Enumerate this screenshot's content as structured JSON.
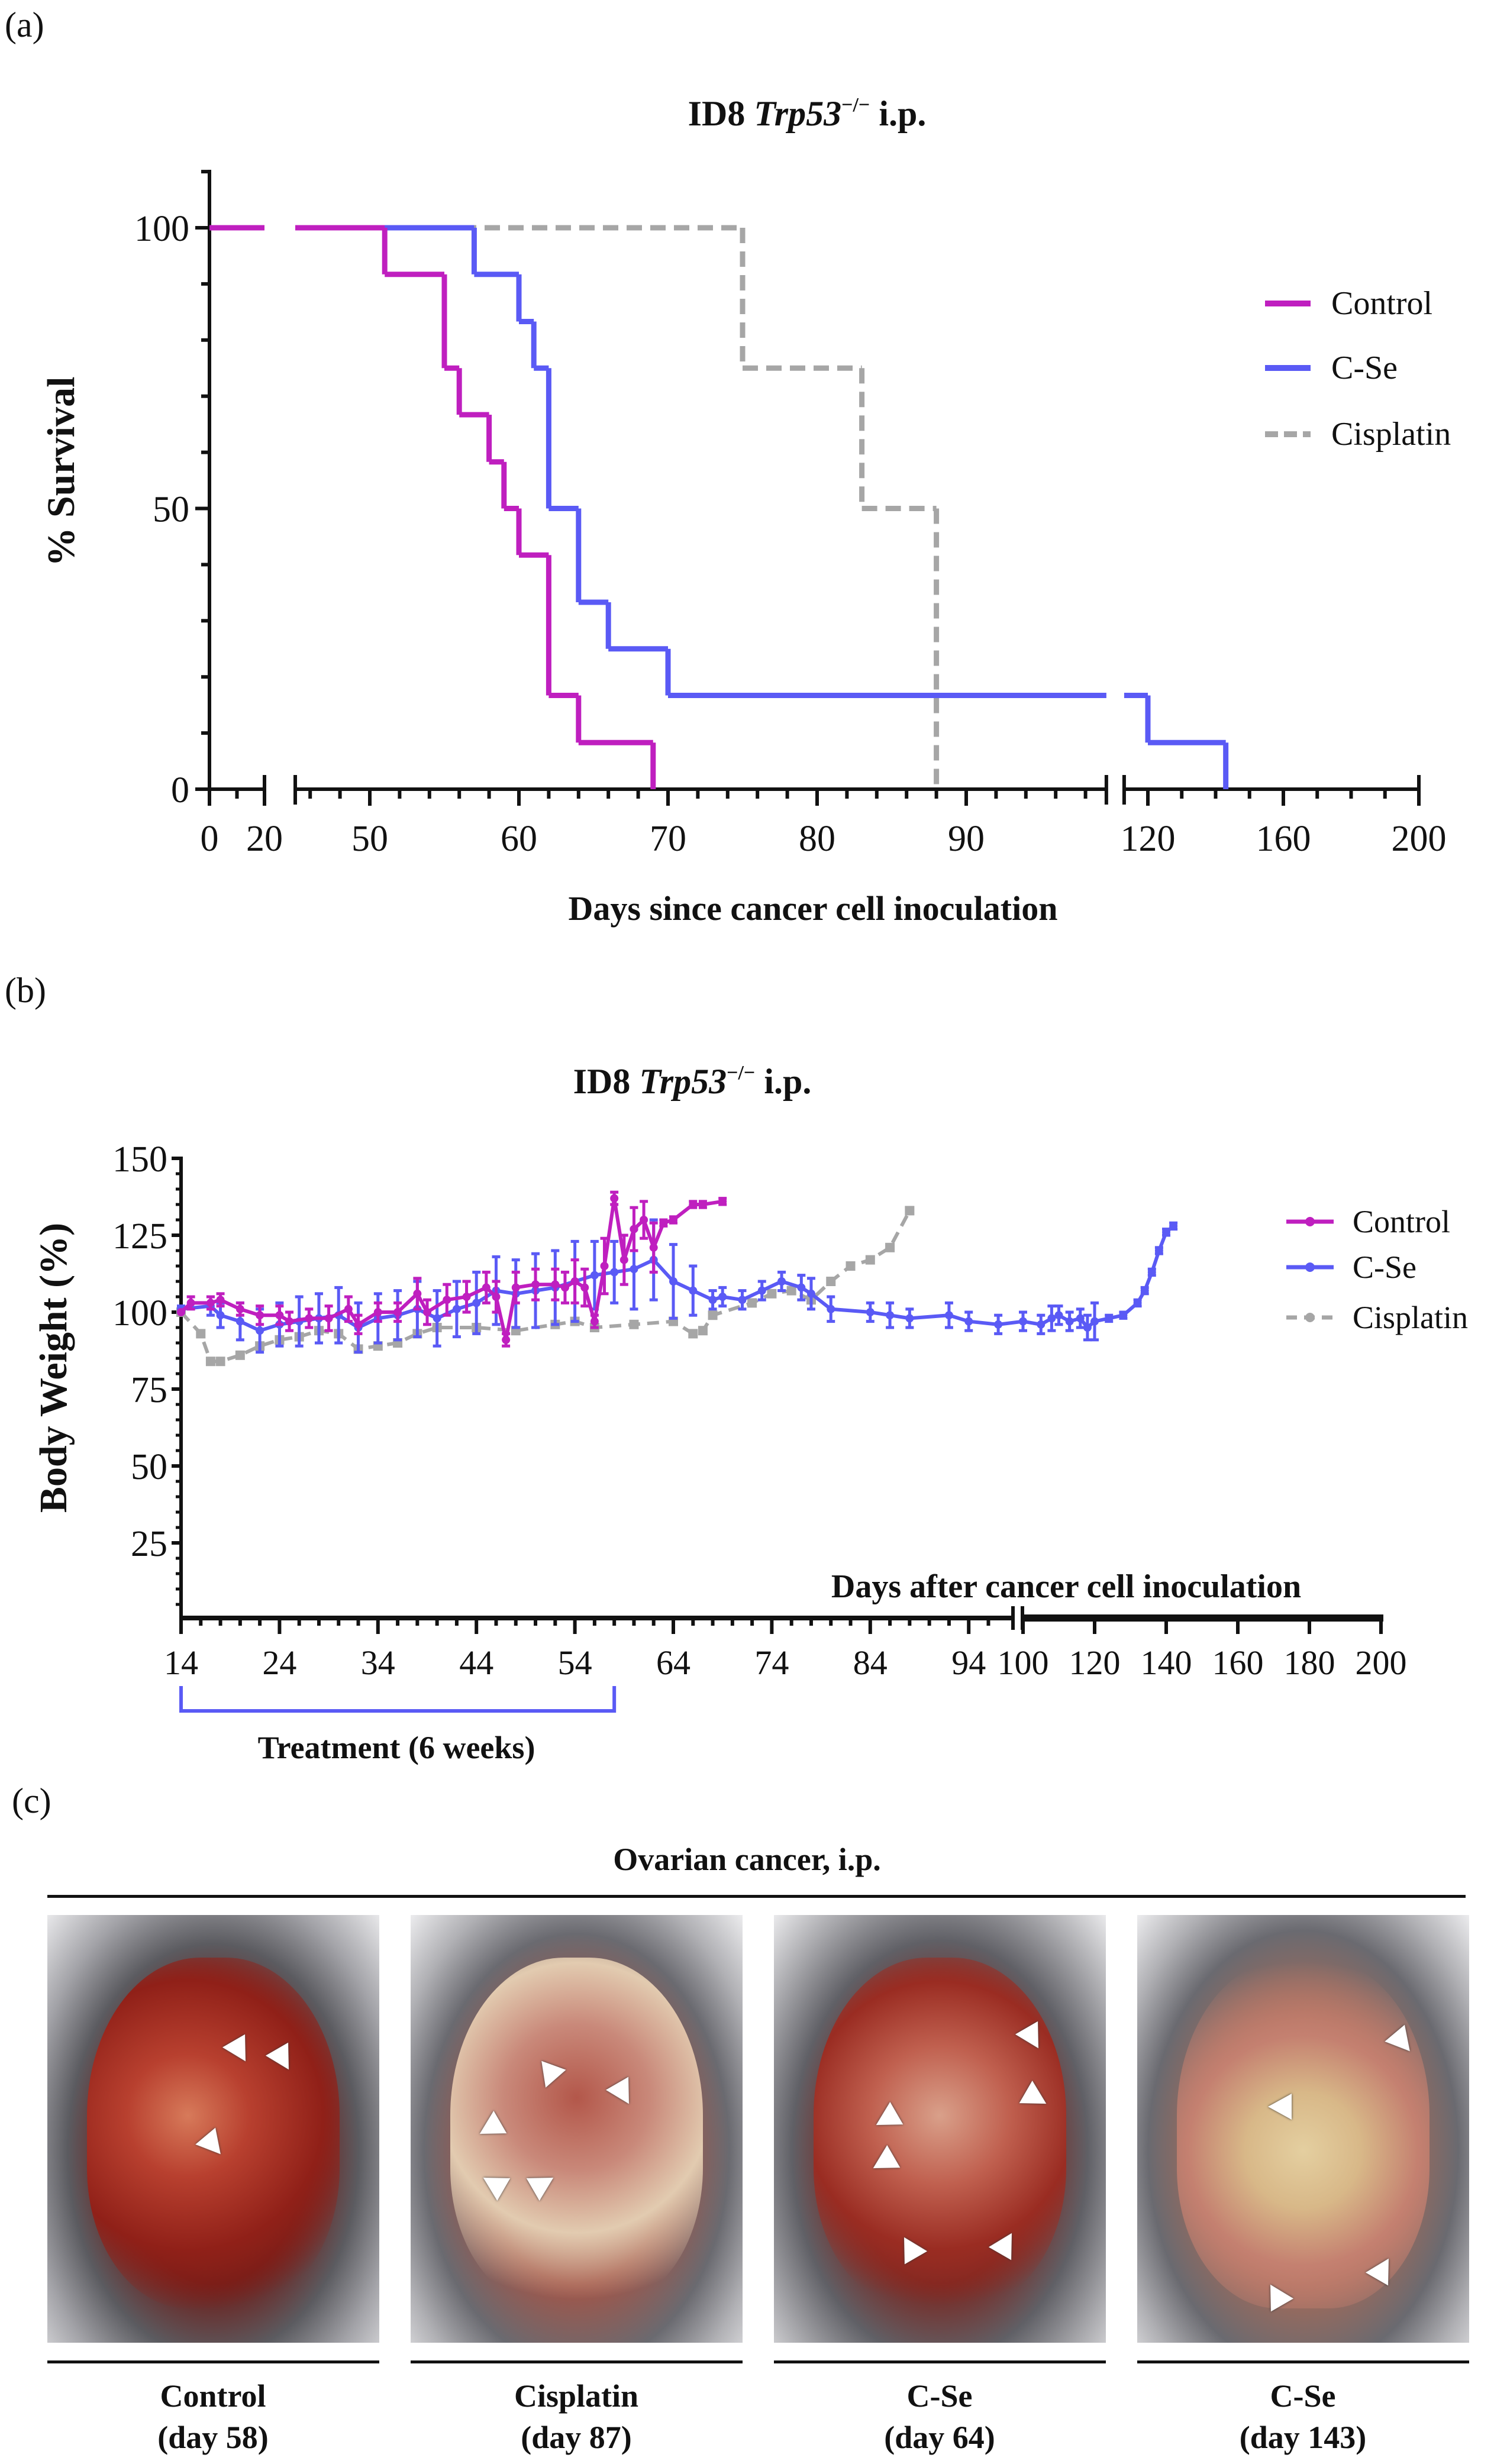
{
  "panel_labels": {
    "a": "(a)",
    "b": "(b)",
    "c": "(c)"
  },
  "colors": {
    "control": "#bf1fbf",
    "cse": "#5a5af5",
    "cisplatin": "#a6a6a6"
  },
  "chart_data": [
    {
      "type": "line",
      "subtype": "kaplan-meier",
      "title": {
        "prefix": "ID8 ",
        "gene": "Trp53",
        "sup": "−/−",
        "suffix": " i.p."
      },
      "xlabel": "Days since cancer cell inoculation",
      "ylabel": "% Survival",
      "xticks": [
        "0",
        "20",
        "50",
        "60",
        "70",
        "80",
        "90",
        "120",
        "160",
        "200"
      ],
      "xtick_values": [
        0,
        20,
        50,
        60,
        70,
        80,
        90,
        120,
        160,
        200
      ],
      "yticks": [
        "0",
        "50",
        "100"
      ],
      "ytick_values": [
        0,
        50,
        100
      ],
      "ylim": [
        0,
        110
      ],
      "x_breaks": [
        [
          20,
          45
        ],
        [
          99.4,
          113
        ]
      ],
      "legend_position": "right",
      "series": [
        {
          "name": "Control",
          "key": "control",
          "steps": [
            [
              0,
              100
            ],
            [
              51,
              91.7
            ],
            [
              55,
              75
            ],
            [
              56,
              66.7
            ],
            [
              58,
              58.3
            ],
            [
              59,
              50
            ],
            [
              60,
              41.7
            ],
            [
              62,
              16.7
            ],
            [
              64,
              8.3
            ],
            [
              69,
              0
            ]
          ]
        },
        {
          "name": "C-Se",
          "key": "cse",
          "steps": [
            [
              0,
              100
            ],
            [
              57,
              91.7
            ],
            [
              60,
              83.3
            ],
            [
              61,
              75
            ],
            [
              62,
              50
            ],
            [
              64,
              33.3
            ],
            [
              66,
              25
            ],
            [
              70,
              16.7
            ],
            [
              120,
              8.3
            ],
            [
              143,
              0
            ]
          ]
        },
        {
          "name": "Cisplatin",
          "key": "cisplatin",
          "dashed": true,
          "steps": [
            [
              0,
              100
            ],
            [
              75,
              75
            ],
            [
              83,
              50
            ],
            [
              88,
              0
            ]
          ]
        }
      ]
    },
    {
      "type": "line",
      "title": {
        "prefix": "ID8 ",
        "gene": "Trp53",
        "sup": "−/−",
        "suffix": " i.p."
      },
      "xlabel": "Days after cancer cell inoculation",
      "ylabel": "Body Weight (%)",
      "xticks": [
        "14",
        "24",
        "34",
        "44",
        "54",
        "64",
        "74",
        "84",
        "94",
        "100",
        "120",
        "140",
        "160",
        "180",
        "200"
      ],
      "xtick_values": [
        14,
        24,
        34,
        44,
        54,
        64,
        74,
        84,
        94,
        100,
        120,
        140,
        160,
        180,
        200
      ],
      "yticks": [
        "25",
        "50",
        "75",
        "100",
        "125",
        "150"
      ],
      "ytick_values": [
        25,
        50,
        75,
        100,
        125,
        150
      ],
      "ylim": [
        0,
        150
      ],
      "legend_position": "right",
      "annotation": {
        "label": "Treatment (6 weeks)",
        "range": [
          14,
          58
        ]
      },
      "series": [
        {
          "name": "Control",
          "key": "control",
          "x": [
            14,
            15,
            17,
            18,
            20,
            22,
            24,
            25,
            27,
            29,
            31,
            32,
            34,
            36,
            38,
            39,
            41,
            43,
            45,
            46,
            47,
            48,
            50,
            52,
            53,
            54,
            55,
            56,
            57,
            58,
            59,
            60,
            61,
            62,
            63,
            64,
            66,
            67,
            69
          ],
          "y": [
            100,
            103,
            103,
            104,
            101,
            99,
            99,
            97,
            98,
            98,
            101,
            96,
            100,
            100,
            106,
            100,
            104,
            105,
            108,
            105,
            91,
            108,
            109,
            109,
            108,
            110,
            108,
            97,
            115,
            137,
            117,
            127,
            130,
            121,
            129,
            130,
            135,
            135,
            136
          ],
          "err": [
            0,
            2,
            2,
            2,
            2,
            3,
            3,
            3,
            3,
            4,
            4,
            3,
            3,
            3,
            5,
            4,
            5,
            5,
            5,
            5,
            2,
            5,
            5,
            5,
            5,
            7,
            6,
            2,
            9,
            2,
            8,
            7,
            6,
            8,
            1,
            1,
            1,
            1,
            1
          ]
        },
        {
          "name": "C-Se",
          "key": "cse",
          "x": [
            14,
            17,
            18,
            20,
            22,
            24,
            26,
            28,
            30,
            32,
            34,
            36,
            38,
            40,
            42,
            44,
            46,
            48,
            50,
            52,
            54,
            56,
            58,
            60,
            62,
            64,
            66,
            68,
            69,
            71,
            73,
            75,
            77,
            78,
            80,
            84,
            86,
            88,
            92,
            94,
            97,
            100,
            105,
            108,
            110,
            113,
            116,
            118,
            120,
            124,
            128,
            132,
            134,
            136,
            138,
            140,
            142
          ],
          "y": [
            101,
            102,
            99,
            97,
            94,
            96,
            97,
            98,
            99,
            95,
            98,
            99,
            101,
            98,
            101,
            103,
            107,
            106,
            107,
            108,
            110,
            112,
            113,
            114,
            117,
            110,
            107,
            104,
            105,
            104,
            107,
            110,
            108,
            106,
            101,
            100,
            99,
            98,
            99,
            97,
            96,
            97,
            96,
            98,
            99,
            97,
            98,
            95,
            97,
            98,
            99,
            103,
            107,
            113,
            120,
            126,
            128
          ],
          "err": [
            1,
            3,
            4,
            6,
            7,
            7,
            8,
            8,
            9,
            8,
            8,
            8,
            9,
            9,
            9,
            10,
            11,
            11,
            12,
            12,
            13,
            11,
            10,
            13,
            13,
            12,
            8,
            3,
            3,
            3,
            3,
            3,
            4,
            5,
            4,
            3,
            4,
            3,
            4,
            3,
            3,
            3,
            3,
            4,
            3,
            3,
            3,
            4,
            6,
            1,
            1,
            1,
            1,
            1,
            1,
            1,
            1
          ]
        },
        {
          "name": "Cisplatin",
          "key": "cisplatin",
          "dashed": true,
          "x": [
            14,
            16,
            17,
            18,
            20,
            22,
            24,
            26,
            28,
            30,
            32,
            34,
            36,
            38,
            40,
            44,
            48,
            52,
            54,
            56,
            60,
            64,
            66,
            67,
            68,
            72,
            74,
            76,
            78,
            80,
            82,
            84,
            86,
            88
          ],
          "y": [
            100,
            93,
            84,
            84,
            86,
            89,
            91,
            92,
            94,
            93,
            88,
            89,
            90,
            93,
            95,
            95,
            94,
            96,
            97,
            95,
            96,
            97,
            93,
            94,
            99,
            103,
            106,
            107,
            104,
            110,
            115,
            117,
            121,
            133
          ]
        }
      ]
    }
  ],
  "panel_c": {
    "title": "Ovarian cancer, i.p.",
    "photos": [
      {
        "group": "Control",
        "day": "(day 58)"
      },
      {
        "group": "Cisplatin",
        "day": "(day 87)"
      },
      {
        "group": "C-Se",
        "day": "(day 64)"
      },
      {
        "group": "C-Se",
        "day": "(day 143)"
      }
    ]
  }
}
